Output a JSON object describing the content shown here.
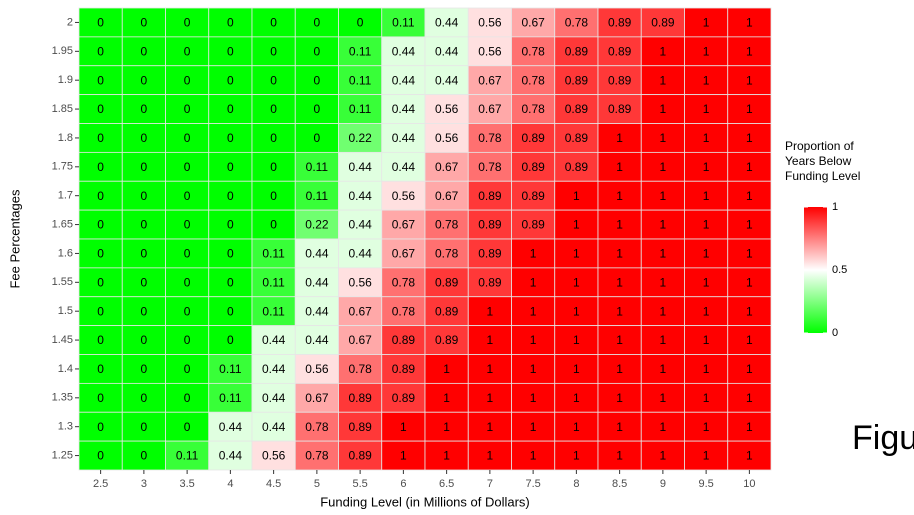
{
  "chart_data": {
    "type": "heatmap",
    "x_label": "Funding Level (in Millions of Dollars)",
    "y_label": "Fee Percentages",
    "x": [
      2.5,
      3,
      3.5,
      4,
      4.5,
      5,
      5.5,
      6,
      6.5,
      7,
      7.5,
      8,
      8.5,
      9,
      9.5,
      10
    ],
    "y": [
      2,
      1.95,
      1.9,
      1.85,
      1.8,
      1.75,
      1.7,
      1.65,
      1.6,
      1.55,
      1.5,
      1.45,
      1.4,
      1.35,
      1.3,
      1.25
    ],
    "values": [
      [
        0,
        0,
        0,
        0,
        0,
        0,
        0,
        0.11,
        0.44,
        0.56,
        0.67,
        0.78,
        0.89,
        0.89,
        1,
        1
      ],
      [
        0,
        0,
        0,
        0,
        0,
        0,
        0.11,
        0.44,
        0.44,
        0.56,
        0.78,
        0.89,
        0.89,
        1,
        1,
        1
      ],
      [
        0,
        0,
        0,
        0,
        0,
        0,
        0.11,
        0.44,
        0.44,
        0.67,
        0.78,
        0.89,
        0.89,
        1,
        1,
        1
      ],
      [
        0,
        0,
        0,
        0,
        0,
        0,
        0.11,
        0.44,
        0.56,
        0.67,
        0.78,
        0.89,
        0.89,
        1,
        1,
        1
      ],
      [
        0,
        0,
        0,
        0,
        0,
        0,
        0.22,
        0.44,
        0.56,
        0.78,
        0.89,
        0.89,
        1,
        1,
        1,
        1
      ],
      [
        0,
        0,
        0,
        0,
        0,
        0.11,
        0.44,
        0.44,
        0.67,
        0.78,
        0.89,
        0.89,
        1,
        1,
        1,
        1
      ],
      [
        0,
        0,
        0,
        0,
        0,
        0.11,
        0.44,
        0.56,
        0.67,
        0.89,
        0.89,
        1,
        1,
        1,
        1,
        1
      ],
      [
        0,
        0,
        0,
        0,
        0,
        0.22,
        0.44,
        0.67,
        0.78,
        0.89,
        0.89,
        1,
        1,
        1,
        1,
        1
      ],
      [
        0,
        0,
        0,
        0,
        0.11,
        0.44,
        0.44,
        0.67,
        0.78,
        0.89,
        1,
        1,
        1,
        1,
        1,
        1
      ],
      [
        0,
        0,
        0,
        0,
        0.11,
        0.44,
        0.56,
        0.78,
        0.89,
        0.89,
        1,
        1,
        1,
        1,
        1,
        1
      ],
      [
        0,
        0,
        0,
        0,
        0.11,
        0.44,
        0.67,
        0.78,
        0.89,
        1,
        1,
        1,
        1,
        1,
        1,
        1
      ],
      [
        0,
        0,
        0,
        0,
        0.44,
        0.44,
        0.67,
        0.89,
        0.89,
        1,
        1,
        1,
        1,
        1,
        1,
        1
      ],
      [
        0,
        0,
        0,
        0.11,
        0.44,
        0.56,
        0.78,
        0.89,
        1,
        1,
        1,
        1,
        1,
        1,
        1,
        1
      ],
      [
        0,
        0,
        0,
        0.11,
        0.44,
        0.67,
        0.89,
        0.89,
        1,
        1,
        1,
        1,
        1,
        1,
        1,
        1
      ],
      [
        0,
        0,
        0,
        0.44,
        0.44,
        0.78,
        0.89,
        1,
        1,
        1,
        1,
        1,
        1,
        1,
        1,
        1
      ],
      [
        0,
        0,
        0.11,
        0.44,
        0.56,
        0.78,
        0.89,
        1,
        1,
        1,
        1,
        1,
        1,
        1,
        1,
        1
      ]
    ],
    "low_color": "#00ff00",
    "mid_color": "#ffffff",
    "high_color": "#ff0000",
    "colorlim": [
      0,
      1
    ],
    "legend_title": "Proportion of Years Below Funding Level",
    "legend_ticks": [
      0,
      0.5,
      1
    ],
    "annotation": "Figu"
  }
}
